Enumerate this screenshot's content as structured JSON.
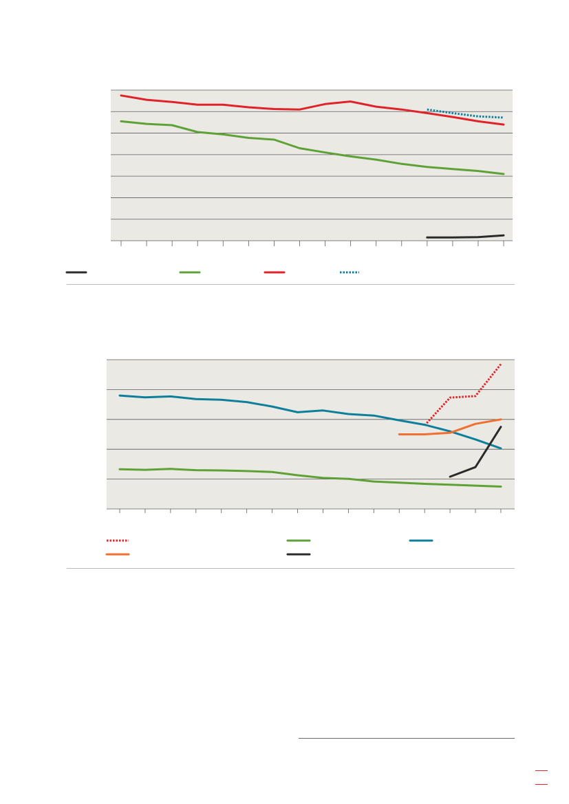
{
  "colors": {
    "plot_bg": "#ebe9e4",
    "grid": "#5b5b5b",
    "black": "#2b2b2b",
    "green": "#5ea136",
    "red": "#df2328",
    "teal": "#0d7f9b",
    "orange": "#ef7030"
  },
  "chart_data": [
    {
      "type": "line",
      "grid": true,
      "x": [
        1,
        2,
        3,
        4,
        5,
        6,
        7,
        8,
        9,
        10,
        11,
        12,
        13,
        14,
        15,
        16
      ],
      "ylim": [
        0,
        7
      ],
      "series": [
        {
          "key": "black",
          "color": "#2b2b2b",
          "dashed": false,
          "values": [
            null,
            null,
            null,
            null,
            null,
            null,
            null,
            null,
            null,
            null,
            null,
            null,
            0.15,
            0.15,
            0.17,
            0.25
          ]
        },
        {
          "key": "green",
          "color": "#5ea136",
          "dashed": false,
          "values": [
            5.55,
            5.43,
            5.37,
            5.05,
            4.94,
            4.78,
            4.7,
            4.3,
            4.1,
            3.92,
            3.77,
            3.57,
            3.43,
            3.33,
            3.24,
            3.1
          ]
        },
        {
          "key": "red",
          "color": "#df2328",
          "dashed": false,
          "values": [
            6.75,
            6.55,
            6.45,
            6.32,
            6.32,
            6.2,
            6.12,
            6.1,
            6.35,
            6.47,
            6.23,
            6.1,
            5.93,
            5.75,
            5.55,
            5.4
          ]
        },
        {
          "key": "teal",
          "color": "#0d7f9b",
          "dashed": true,
          "values": [
            null,
            null,
            null,
            null,
            null,
            null,
            null,
            null,
            null,
            null,
            null,
            null,
            6.1,
            5.93,
            5.78,
            5.72
          ]
        }
      ]
    },
    {
      "type": "line",
      "grid": true,
      "x": [
        1,
        2,
        3,
        4,
        5,
        6,
        7,
        8,
        9,
        10,
        11,
        12,
        13,
        14,
        15,
        16
      ],
      "ylim": [
        0,
        5
      ],
      "series": [
        {
          "key": "red",
          "color": "#df2328",
          "dashed": true,
          "values": [
            null,
            null,
            null,
            null,
            null,
            null,
            null,
            null,
            null,
            null,
            null,
            null,
            2.8,
            3.73,
            3.78,
            4.85
          ]
        },
        {
          "key": "green",
          "color": "#5ea136",
          "dashed": false,
          "values": [
            1.33,
            1.31,
            1.34,
            1.3,
            1.29,
            1.27,
            1.24,
            1.13,
            1.04,
            1.01,
            0.92,
            0.88,
            0.84,
            0.81,
            0.78,
            0.75
          ]
        },
        {
          "key": "teal",
          "color": "#0d7f9b",
          "dashed": false,
          "values": [
            3.8,
            3.74,
            3.77,
            3.68,
            3.66,
            3.58,
            3.43,
            3.24,
            3.3,
            3.18,
            3.13,
            2.97,
            2.82,
            2.6,
            2.33,
            2.03
          ]
        },
        {
          "key": "orange",
          "color": "#ef7030",
          "dashed": false,
          "values": [
            null,
            null,
            null,
            null,
            null,
            null,
            null,
            null,
            null,
            null,
            null,
            2.5,
            2.5,
            2.55,
            2.85,
            3.0
          ]
        },
        {
          "key": "black",
          "color": "#2b2b2b",
          "dashed": false,
          "values": [
            null,
            null,
            null,
            null,
            null,
            null,
            null,
            null,
            null,
            null,
            null,
            null,
            null,
            1.08,
            1.4,
            2.75
          ]
        }
      ]
    }
  ]
}
